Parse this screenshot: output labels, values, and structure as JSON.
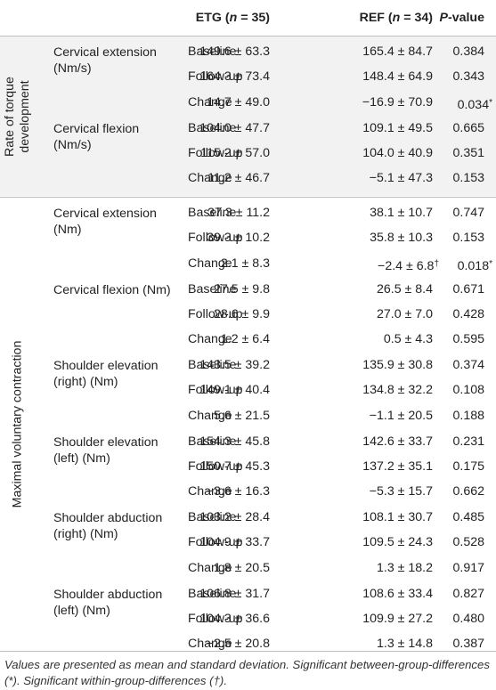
{
  "header": {
    "etg": "ETG (",
    "etg_n": "n",
    "etg_tail": " = 35)",
    "ref": "REF (",
    "ref_n": "n",
    "ref_tail": " = 34)",
    "p": "P",
    "p_tail": "-value"
  },
  "groups": [
    {
      "label_line1": "Rate of torque",
      "label_line2": "development",
      "measures": [
        {
          "name_line1": "Cervical extension",
          "name_line2": "(Nm/s)",
          "rows": [
            {
              "tp": "Baseline",
              "etg": "149.6 ± 63.3",
              "ref": "165.4 ± 84.7",
              "ref_mark": "",
              "p": "0.384",
              "p_mark": ""
            },
            {
              "tp": "Follow-up",
              "etg": "164.3 ± 73.4",
              "ref": "148.4 ± 64.9",
              "ref_mark": "",
              "p": "0.343",
              "p_mark": ""
            },
            {
              "tp": "Change",
              "etg": "14.7 ± 49.0",
              "ref": "−16.9 ± 70.9",
              "ref_mark": "",
              "p": "0.034",
              "p_mark": "*"
            }
          ]
        },
        {
          "name_line1": "Cervical flexion",
          "name_line2": "(Nm/s)",
          "rows": [
            {
              "tp": "Baseline",
              "etg": "104.0 ± 47.7",
              "ref": "109.1 ± 49.5",
              "ref_mark": "",
              "p": "0.665",
              "p_mark": ""
            },
            {
              "tp": "Follow-up",
              "etg": "115.2 ± 57.0",
              "ref": "104.0 ± 40.9",
              "ref_mark": "",
              "p": "0.351",
              "p_mark": ""
            },
            {
              "tp": "Change",
              "etg": "11.2 ± 46.7",
              "ref": "−5.1 ± 47.3",
              "ref_mark": "",
              "p": "0.153",
              "p_mark": ""
            }
          ]
        }
      ]
    },
    {
      "label_line1": "Maximal voluntary contraction",
      "label_line2": "",
      "measures": [
        {
          "name_line1": "Cervical extension",
          "name_line2": "(Nm)",
          "rows": [
            {
              "tp": "Baseline",
              "etg": "37.3 ± 11.2",
              "ref": "38.1 ± 10.7",
              "ref_mark": "",
              "p": "0.747",
              "p_mark": ""
            },
            {
              "tp": "Follow-up",
              "etg": "39.3 ± 10.2",
              "ref": "35.8 ± 10.3",
              "ref_mark": "",
              "p": "0.153",
              "p_mark": ""
            },
            {
              "tp": "Change",
              "etg": "2.1 ± 8.3",
              "ref": "−2.4 ± 6.8",
              "ref_mark": "†",
              "p": "0.018",
              "p_mark": "*"
            }
          ]
        },
        {
          "name_line1": "Cervical flexion (Nm)",
          "name_line2": "",
          "rows": [
            {
              "tp": "Baseline",
              "etg": "27.5 ± 9.8",
              "ref": "26.5 ± 8.4",
              "ref_mark": "",
              "p": "0.671",
              "p_mark": ""
            },
            {
              "tp": "Follow-up",
              "etg": "28.6 ± 9.9",
              "ref": "27.0 ± 7.0",
              "ref_mark": "",
              "p": "0.428",
              "p_mark": ""
            },
            {
              "tp": "Change",
              "etg": "1.2 ± 6.4",
              "ref": "0.5 ± 4.3",
              "ref_mark": "",
              "p": "0.595",
              "p_mark": ""
            }
          ]
        },
        {
          "name_line1": "Shoulder elevation",
          "name_line2": "(right) (Nm)",
          "rows": [
            {
              "tp": "Baseline",
              "etg": "143.5 ± 39.2",
              "ref": "135.9 ± 30.8",
              "ref_mark": "",
              "p": "0.374",
              "p_mark": ""
            },
            {
              "tp": "Follow-up",
              "etg": "149.1 ± 40.4",
              "ref": "134.8 ± 32.2",
              "ref_mark": "",
              "p": "0.108",
              "p_mark": ""
            },
            {
              "tp": "Change",
              "etg": "5.6 ± 21.5",
              "ref": "−1.1 ± 20.5",
              "ref_mark": "",
              "p": "0.188",
              "p_mark": ""
            }
          ]
        },
        {
          "name_line1": "Shoulder elevation",
          "name_line2": "(left) (Nm)",
          "rows": [
            {
              "tp": "Baseline",
              "etg": "154.3 ± 45.8",
              "ref": "142.6 ± 33.7",
              "ref_mark": "",
              "p": "0.231",
              "p_mark": ""
            },
            {
              "tp": "Follow-up",
              "etg": "150.7 ± 45.3",
              "ref": "137.2 ± 35.1",
              "ref_mark": "",
              "p": "0.175",
              "p_mark": ""
            },
            {
              "tp": "Change",
              "etg": "−3.6 ± 16.3",
              "ref": "−5.3 ± 15.7",
              "ref_mark": "",
              "p": "0.662",
              "p_mark": ""
            }
          ]
        },
        {
          "name_line1": "Shoulder abduction",
          "name_line2": "(right) (Nm)",
          "rows": [
            {
              "tp": "Baseline",
              "etg": "103.2 ± 28.4",
              "ref": "108.1 ± 30.7",
              "ref_mark": "",
              "p": "0.485",
              "p_mark": ""
            },
            {
              "tp": "Follow-up",
              "etg": "104.9 ± 33.7",
              "ref": "109.5 ± 24.3",
              "ref_mark": "",
              "p": "0.528",
              "p_mark": ""
            },
            {
              "tp": "Change",
              "etg": "1.8 ± 20.5",
              "ref": "1.3 ± 18.2",
              "ref_mark": "",
              "p": "0.917",
              "p_mark": ""
            }
          ]
        },
        {
          "name_line1": "Shoulder abduction",
          "name_line2": "(left) (Nm)",
          "rows": [
            {
              "tp": "Baseline",
              "etg": "106.8 ± 31.7",
              "ref": "108.6 ± 33.4",
              "ref_mark": "",
              "p": "0.827",
              "p_mark": ""
            },
            {
              "tp": "Follow-up",
              "etg": "104.3 ± 36.6",
              "ref": "109.9 ± 27.2",
              "ref_mark": "",
              "p": "0.480",
              "p_mark": ""
            },
            {
              "tp": "Change",
              "etg": "−2.5 ± 20.8",
              "ref": "1.3 ± 14.8",
              "ref_mark": "",
              "p": "0.387",
              "p_mark": ""
            }
          ]
        }
      ]
    }
  ],
  "footnote": {
    "part1": "Values are presented as mean and standard deviation. Significant between-group-differences (",
    "mark1": "*",
    "part2": "). Significant within-group-differences (",
    "mark2": "†",
    "part3": ")."
  }
}
